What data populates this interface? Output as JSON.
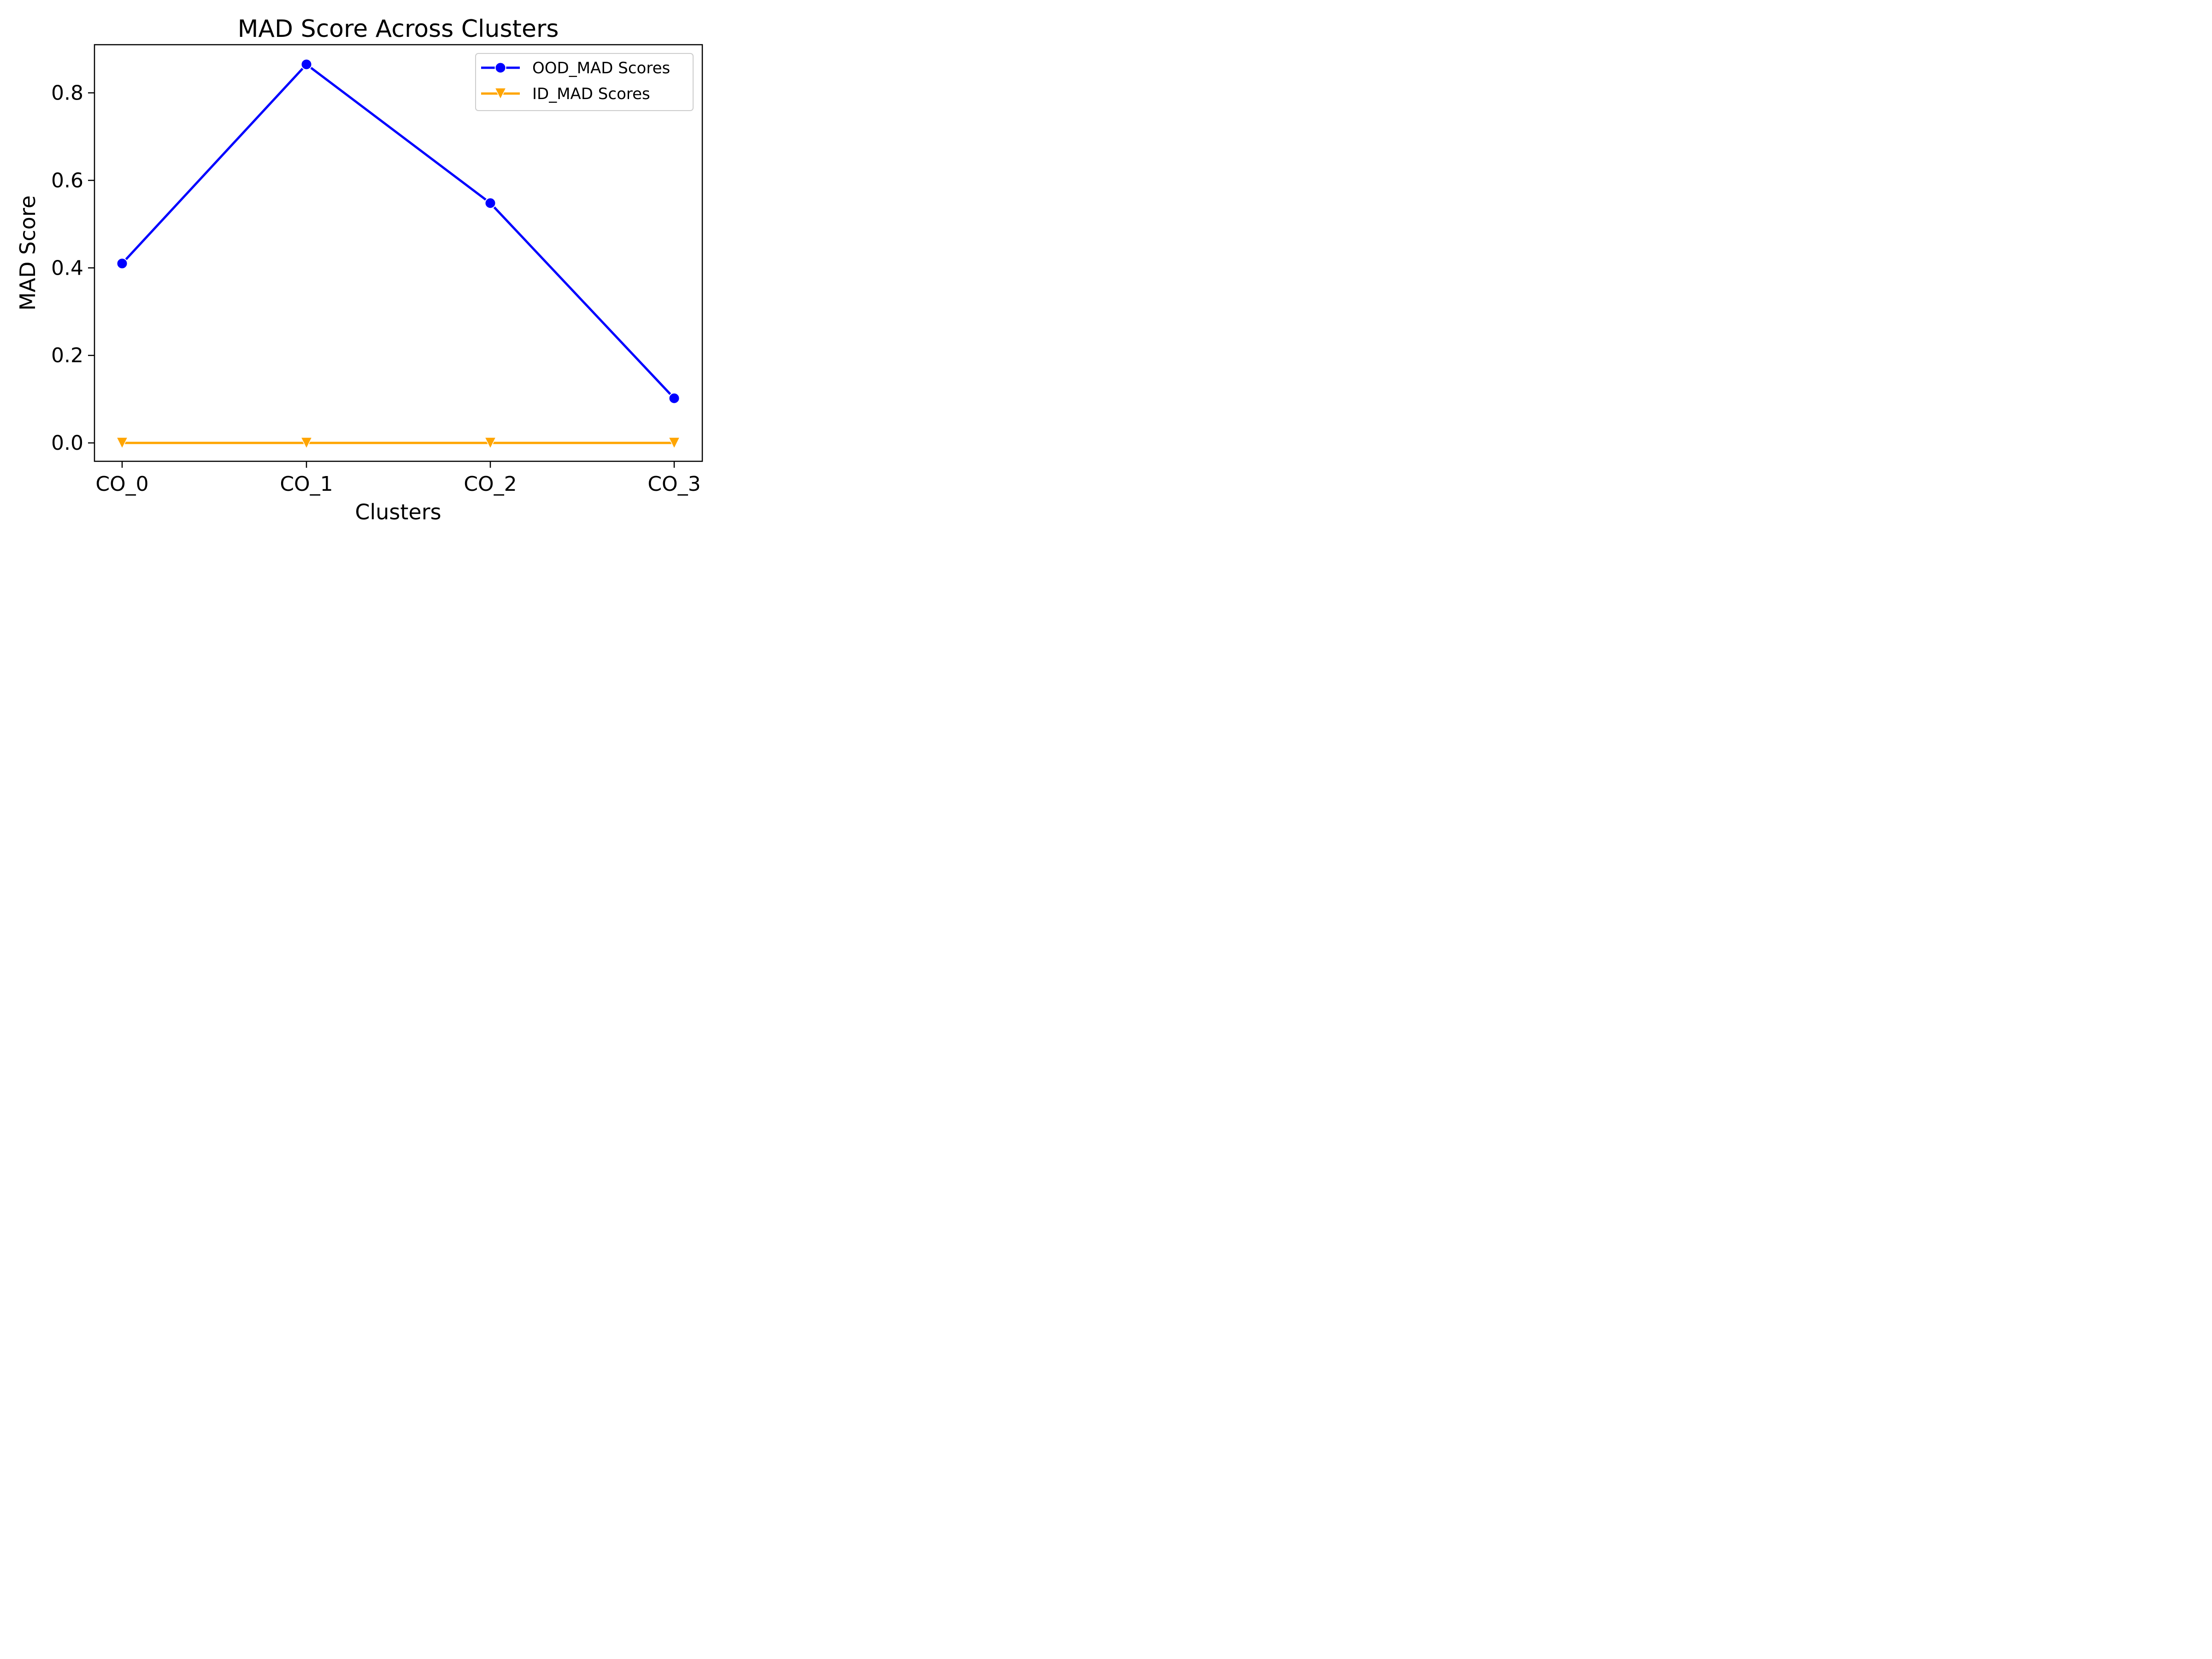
{
  "chart_data": {
    "type": "line",
    "title": "MAD Score Across Clusters",
    "xlabel": "Clusters",
    "ylabel": "MAD Score",
    "categories": [
      "CO_0",
      "CO_1",
      "CO_2",
      "CO_3"
    ],
    "ylim": [
      -0.042,
      0.91
    ],
    "yticks": [
      0.0,
      0.2,
      0.4,
      0.6,
      0.8
    ],
    "ytick_labels": [
      "0.0",
      "0.2",
      "0.4",
      "0.6",
      "0.8"
    ],
    "grid": false,
    "legend_position": "top-right",
    "series": [
      {
        "name": "OOD_MAD Scores",
        "values": [
          0.41,
          0.865,
          0.548,
          0.102
        ],
        "color": "#0000ff",
        "marker": "circle"
      },
      {
        "name": "ID_MAD Scores",
        "values": [
          0.0,
          0.0,
          0.0,
          0.0
        ],
        "color": "#ffa500",
        "marker": "triangle-down"
      }
    ]
  }
}
